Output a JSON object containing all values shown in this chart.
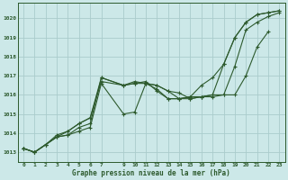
{
  "title": "Graphe pression niveau de la mer (hPa)",
  "bg_color": "#cce8e8",
  "grid_color": "#aacccc",
  "line_color": "#2d5a2d",
  "marker_color": "#2d5a2d",
  "xlim": [
    -0.5,
    23.5
  ],
  "ylim": [
    1012.5,
    1020.8
  ],
  "yticks": [
    1013,
    1014,
    1015,
    1016,
    1017,
    1018,
    1019,
    1020
  ],
  "xticks": [
    0,
    1,
    2,
    3,
    4,
    5,
    6,
    7,
    9,
    10,
    11,
    12,
    13,
    14,
    15,
    16,
    17,
    18,
    19,
    20,
    21,
    22,
    23
  ],
  "series": [
    {
      "x": [
        0,
        1,
        2,
        3,
        4,
        5,
        6,
        7,
        9,
        10,
        11,
        12,
        13,
        14,
        15,
        16,
        17,
        18,
        19,
        20,
        21,
        22,
        23
      ],
      "y": [
        1013.2,
        1013.0,
        1013.4,
        1013.8,
        1013.9,
        1014.1,
        1014.3,
        1016.6,
        1015.0,
        1015.1,
        1016.6,
        1016.5,
        1016.2,
        1016.1,
        1015.8,
        1015.9,
        1015.9,
        1016.0,
        1017.5,
        1019.4,
        1019.8,
        1020.1,
        1020.3
      ]
    },
    {
      "x": [
        0,
        1,
        2,
        3,
        4,
        5,
        6,
        7,
        9,
        10,
        11,
        12,
        13,
        14,
        15,
        16,
        17,
        18,
        19,
        20,
        21,
        22
      ],
      "y": [
        1013.2,
        1013.0,
        1013.4,
        1013.8,
        1013.9,
        1014.3,
        1014.5,
        1016.9,
        1016.5,
        1016.6,
        1016.6,
        1016.5,
        1016.2,
        1015.8,
        1015.9,
        1015.9,
        1016.0,
        1016.0,
        1016.0,
        1017.0,
        1018.5,
        1019.3
      ]
    },
    {
      "x": [
        0,
        1,
        2,
        3,
        4,
        5,
        6,
        7,
        9,
        10,
        11,
        12,
        13,
        14,
        15,
        16,
        17,
        18,
        19,
        20,
        21,
        22,
        23
      ],
      "y": [
        1013.2,
        1013.0,
        1013.4,
        1013.8,
        1014.1,
        1014.5,
        1014.8,
        1016.9,
        1016.5,
        1016.7,
        1016.6,
        1016.3,
        1015.8,
        1015.8,
        1015.8,
        1015.9,
        1016.0,
        1017.6,
        1019.0,
        1019.8,
        1020.2,
        1020.3,
        1020.4
      ]
    },
    {
      "x": [
        0,
        1,
        2,
        3,
        4,
        5,
        6,
        7,
        9,
        10,
        11,
        12,
        13,
        14,
        15,
        16,
        17,
        18,
        19,
        20,
        21,
        22,
        23
      ],
      "y": [
        1013.2,
        1013.0,
        1013.4,
        1013.9,
        1014.1,
        1014.5,
        1014.8,
        1016.7,
        1016.5,
        1016.6,
        1016.7,
        1016.2,
        1015.8,
        1015.8,
        1015.9,
        1016.5,
        1016.9,
        1017.6,
        1019.0,
        1019.8,
        1020.2,
        1020.3,
        1020.4
      ]
    }
  ]
}
